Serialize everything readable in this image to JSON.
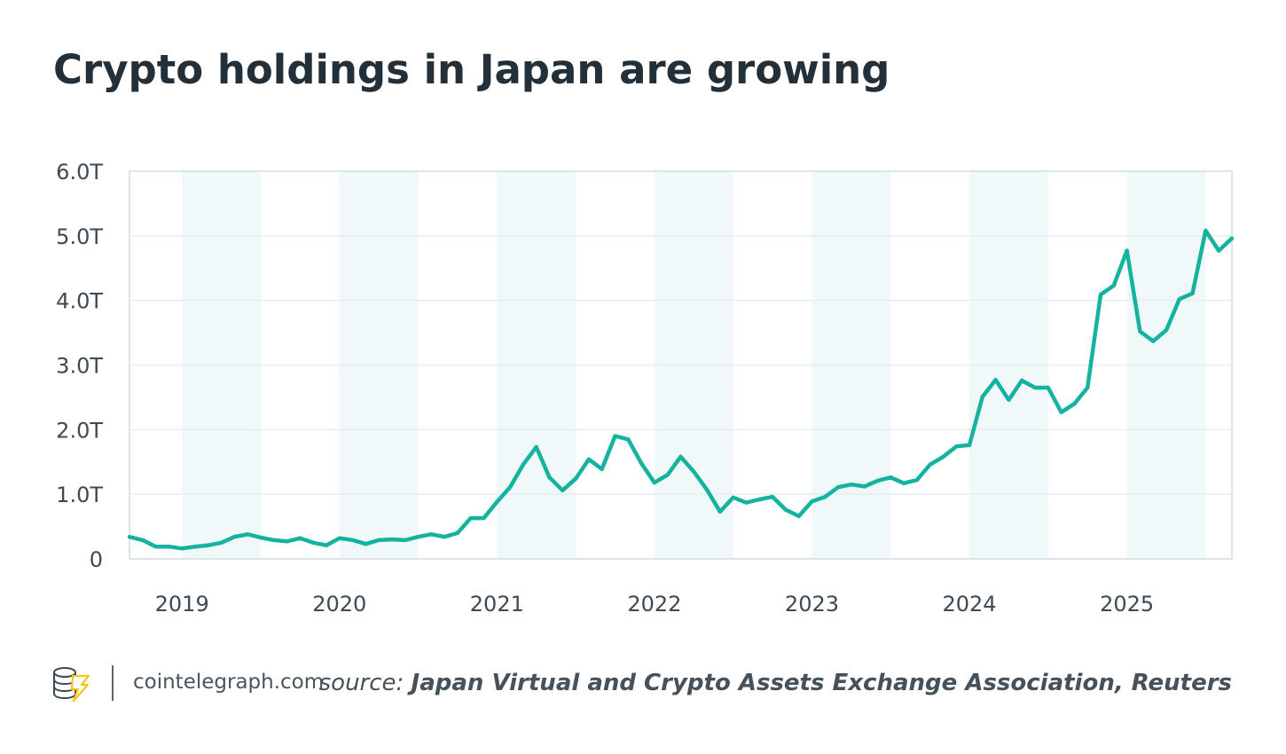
{
  "title": "Crypto holdings in Japan are growing",
  "footer": {
    "site": "cointelegraph.com",
    "source_prefix": "source:",
    "source_text": "Japan Virtual and Crypto Assets Exchange Association, Reuters"
  },
  "colors": {
    "line": "#14b3a0",
    "band": "#f1f8f9",
    "grid": "#e6eef1",
    "title": "#243039",
    "logo_accent": "#f5c518"
  },
  "chart_data": {
    "type": "line",
    "title": "Crypto holdings in Japan are growing",
    "xlabel": "",
    "ylabel": "",
    "ylim": [
      0,
      6
    ],
    "xlim": [
      "2018-09",
      "2025-09"
    ],
    "grid": true,
    "shaded_bands": "first half of each year",
    "y_ticks": [
      {
        "v": 0,
        "label": "0"
      },
      {
        "v": 1,
        "label": "1.0T"
      },
      {
        "v": 2,
        "label": "2.0T"
      },
      {
        "v": 3,
        "label": "3.0T"
      },
      {
        "v": 4,
        "label": "4.0T"
      },
      {
        "v": 5,
        "label": "5.0T"
      },
      {
        "v": 6,
        "label": "6.0T"
      }
    ],
    "x_ticks": [
      "2019",
      "2020",
      "2021",
      "2022",
      "2023",
      "2024",
      "2025"
    ],
    "unit": "trillion yen",
    "series": [
      {
        "x": [
          "2018-09",
          "2018-10",
          "2018-11",
          "2018-12",
          "2019-01",
          "2019-02",
          "2019-03",
          "2019-04",
          "2019-05",
          "2019-06",
          "2019-07",
          "2019-08",
          "2019-09",
          "2019-10",
          "2019-11",
          "2019-12",
          "2020-01",
          "2020-02",
          "2020-03",
          "2020-04",
          "2020-05",
          "2020-06",
          "2020-07",
          "2020-08",
          "2020-09",
          "2020-10",
          "2020-11",
          "2020-12",
          "2021-01",
          "2021-02",
          "2021-03",
          "2021-04",
          "2021-05",
          "2021-06",
          "2021-07",
          "2021-08",
          "2021-09",
          "2021-10",
          "2021-11",
          "2021-12",
          "2022-01",
          "2022-02",
          "2022-03",
          "2022-04",
          "2022-05",
          "2022-06",
          "2022-07",
          "2022-08",
          "2022-09",
          "2022-10",
          "2022-11",
          "2022-12",
          "2023-01",
          "2023-02",
          "2023-03",
          "2023-04",
          "2023-05",
          "2023-06",
          "2023-07",
          "2023-08",
          "2023-09",
          "2023-10",
          "2023-11",
          "2023-12",
          "2024-01",
          "2024-02",
          "2024-03",
          "2024-04",
          "2024-05",
          "2024-06",
          "2024-07",
          "2024-08",
          "2024-09",
          "2024-10",
          "2024-11",
          "2024-12",
          "2025-01",
          "2025-02",
          "2025-03",
          "2025-04",
          "2025-05",
          "2025-06",
          "2025-07",
          "2025-08",
          "2025-09"
        ],
        "y": [
          0.34,
          0.29,
          0.19,
          0.19,
          0.16,
          0.19,
          0.21,
          0.25,
          0.34,
          0.38,
          0.33,
          0.29,
          0.27,
          0.32,
          0.25,
          0.21,
          0.32,
          0.29,
          0.23,
          0.29,
          0.3,
          0.29,
          0.34,
          0.38,
          0.34,
          0.4,
          0.63,
          0.63,
          0.88,
          1.11,
          1.46,
          1.73,
          1.26,
          1.06,
          1.24,
          1.54,
          1.39,
          1.9,
          1.85,
          1.48,
          1.18,
          1.3,
          1.58,
          1.35,
          1.07,
          0.73,
          0.95,
          0.87,
          0.92,
          0.96,
          0.76,
          0.66,
          0.89,
          0.96,
          1.11,
          1.15,
          1.12,
          1.21,
          1.26,
          1.17,
          1.22,
          1.46,
          1.58,
          1.74,
          1.76,
          2.51,
          2.77,
          2.46,
          2.76,
          2.65,
          2.65,
          2.27,
          2.4,
          2.65,
          4.09,
          4.23,
          4.77,
          3.52,
          3.37,
          3.54,
          4.02,
          4.11,
          5.08,
          4.77,
          4.96
        ]
      }
    ]
  }
}
